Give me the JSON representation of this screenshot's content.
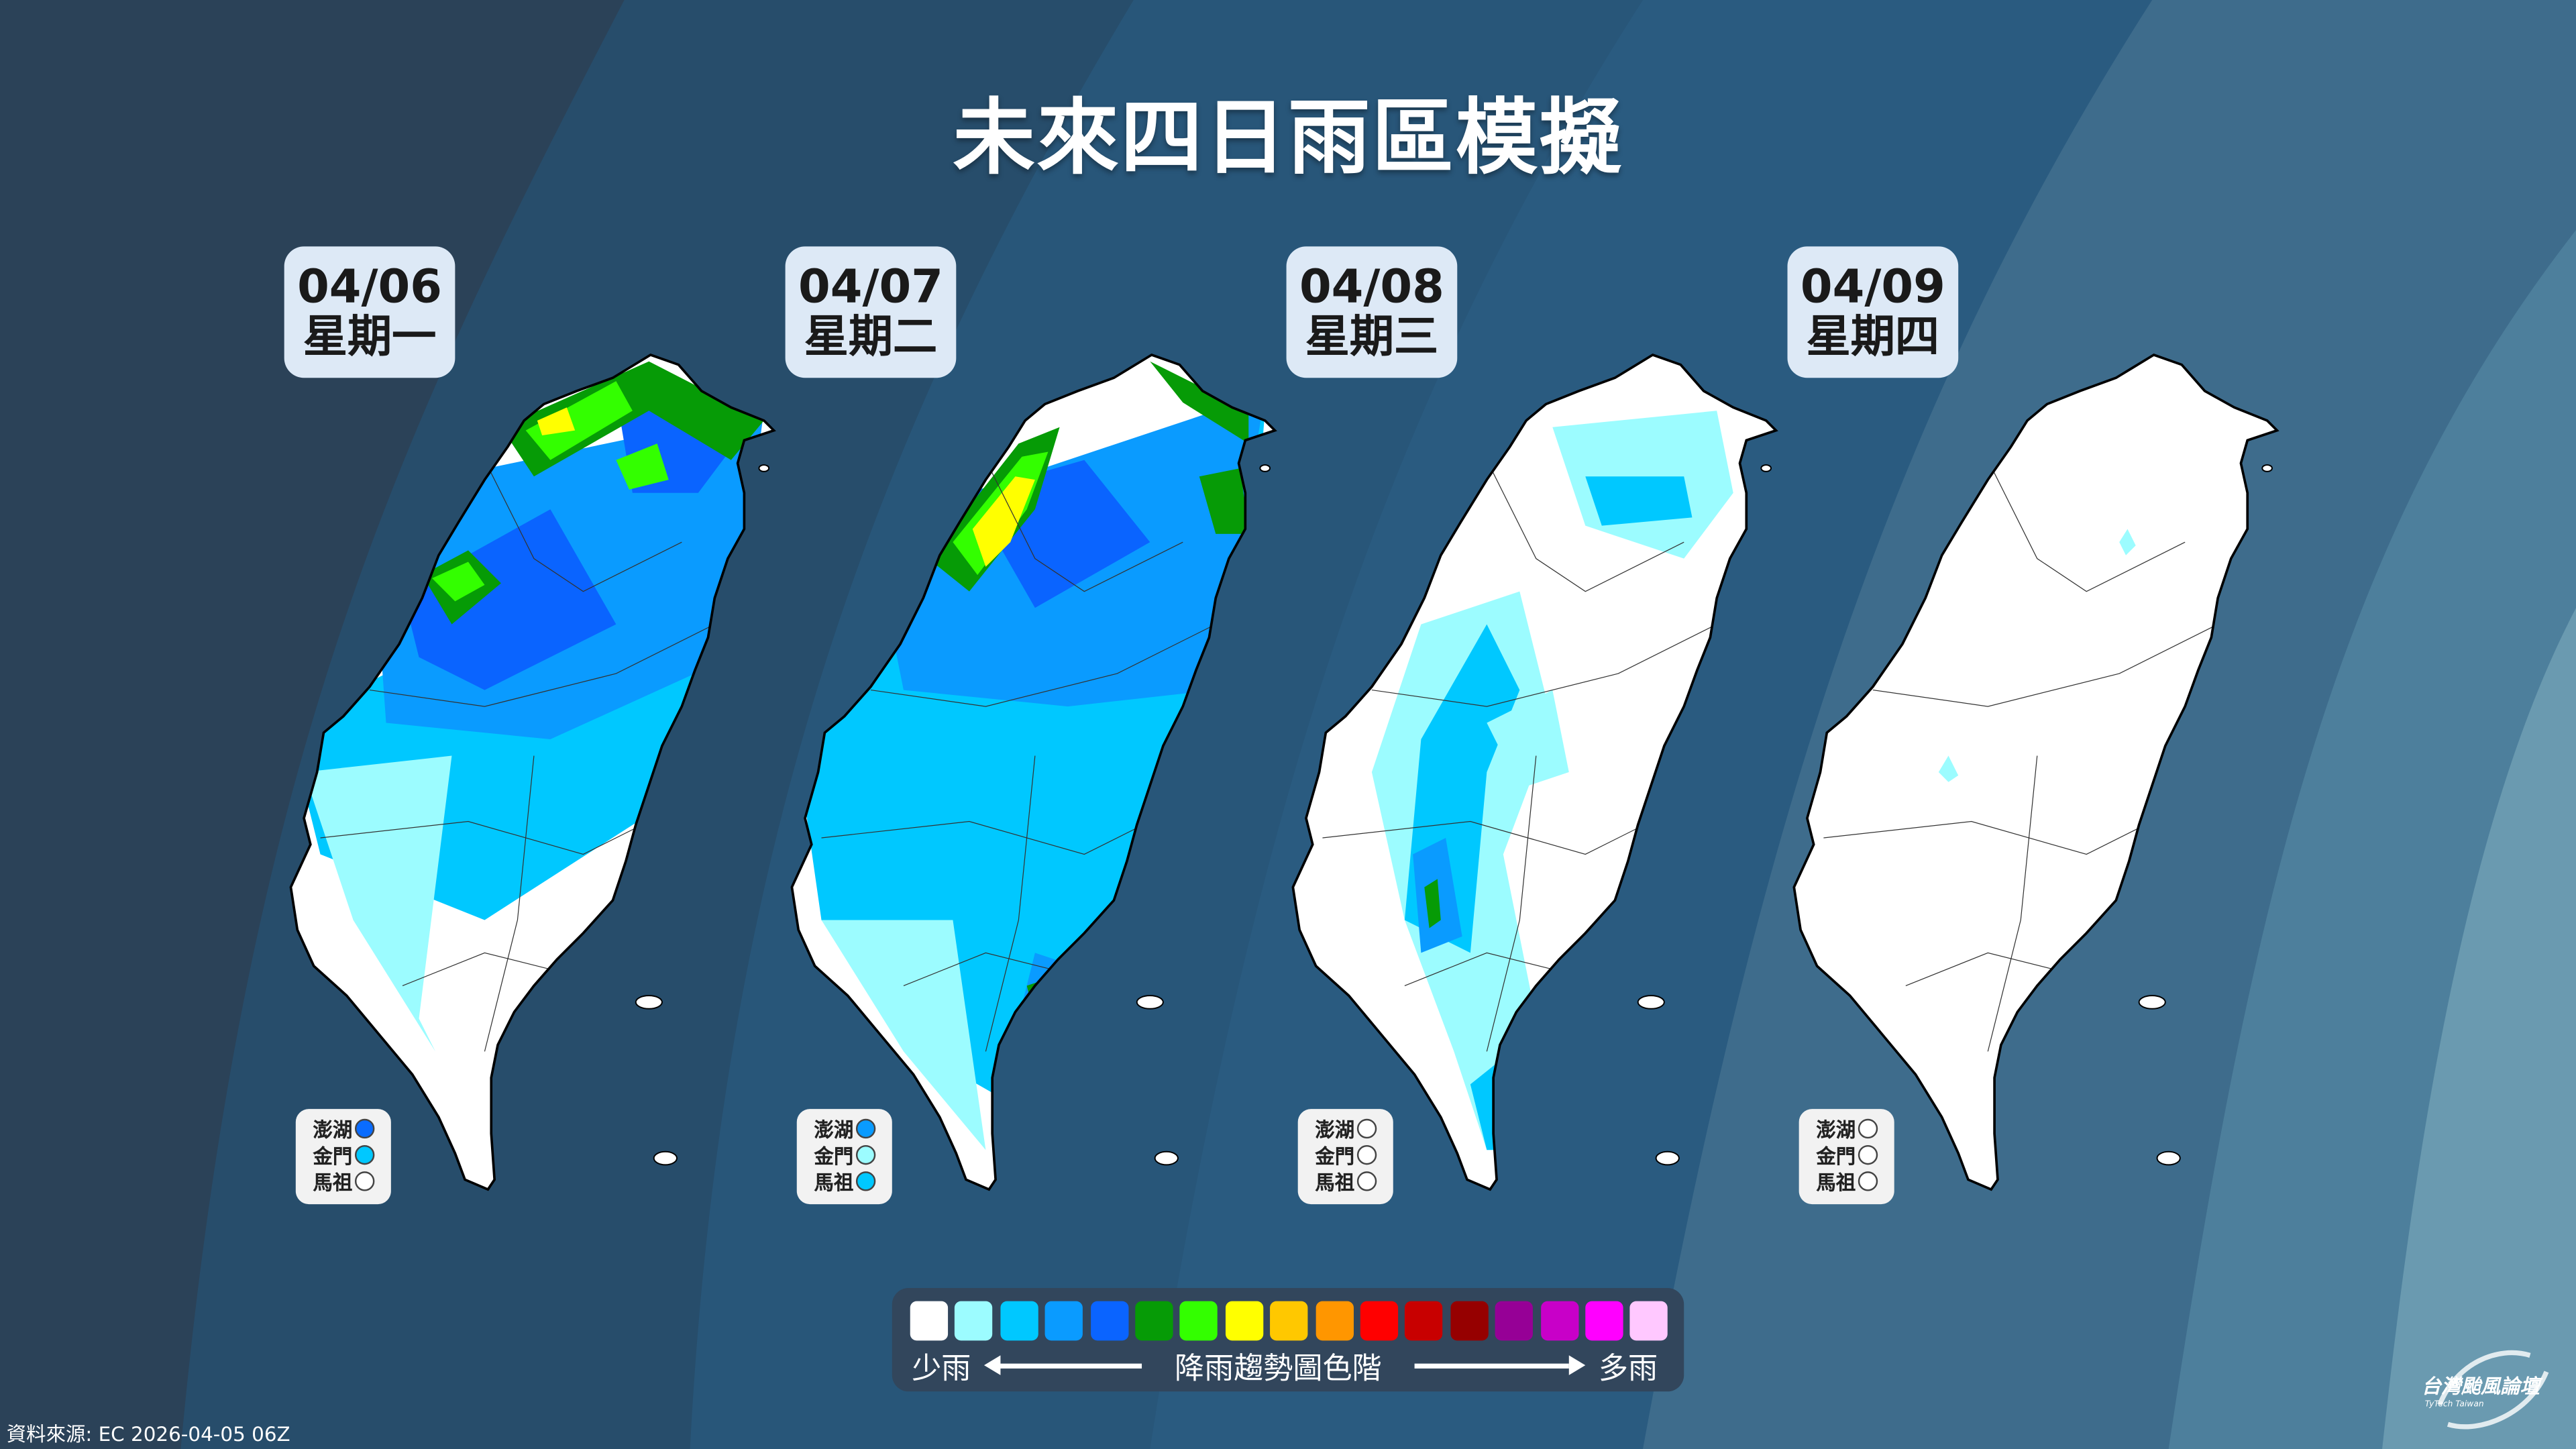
{
  "title": "未來四日雨區模擬",
  "days": [
    {
      "date": "04/06",
      "weekday": "星期一",
      "islands": [
        {
          "name": "澎湖",
          "color": "#0a6cff"
        },
        {
          "name": "金門",
          "color": "#00c8ff"
        },
        {
          "name": "馬祖",
          "color": "#ffffff"
        }
      ]
    },
    {
      "date": "04/07",
      "weekday": "星期二",
      "islands": [
        {
          "name": "澎湖",
          "color": "#0a9bff"
        },
        {
          "name": "金門",
          "color": "#9cfcff"
        },
        {
          "name": "馬祖",
          "color": "#00c8ff"
        }
      ]
    },
    {
      "date": "04/08",
      "weekday": "星期三",
      "islands": [
        {
          "name": "澎湖",
          "color": "#ffffff"
        },
        {
          "name": "金門",
          "color": "#ffffff"
        },
        {
          "name": "馬祖",
          "color": "#ffffff"
        }
      ]
    },
    {
      "date": "04/09",
      "weekday": "星期四",
      "islands": [
        {
          "name": "澎湖",
          "color": "#ffffff"
        },
        {
          "name": "金門",
          "color": "#ffffff"
        },
        {
          "name": "馬祖",
          "color": "#ffffff"
        }
      ]
    }
  ],
  "legend": {
    "colors": [
      "#ffffff",
      "#9cfcff",
      "#00c8ff",
      "#0a9bff",
      "#0a64ff",
      "#069b06",
      "#33ff00",
      "#ffff00",
      "#ffc800",
      "#ff9600",
      "#ff0000",
      "#c80000",
      "#960000",
      "#960096",
      "#c800c8",
      "#ff00ff",
      "#ffc8ff"
    ],
    "low_label": "少雨",
    "center_label": "降雨趨勢圖色階",
    "high_label": "多雨"
  },
  "source": "資料來源: EC 2026-04-05 06Z",
  "logo": {
    "name": "台灣颱風論壇",
    "subtitle": "TyTech Taiwan"
  }
}
